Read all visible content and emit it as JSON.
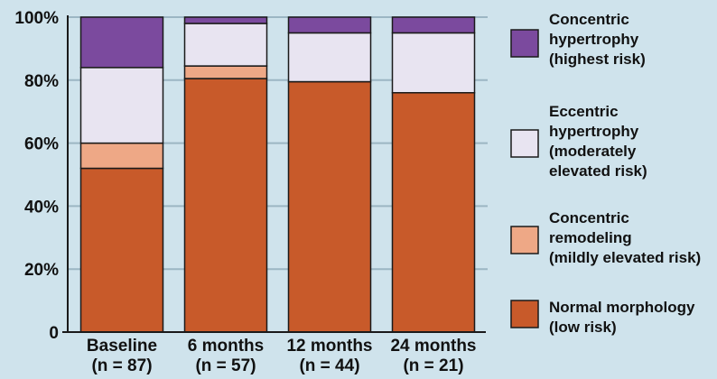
{
  "chart_data": {
    "type": "bar",
    "stacked": true,
    "y_tick_labels": [
      "0",
      "20%",
      "40%",
      "60%",
      "80%",
      "100%"
    ],
    "ylim": [
      0,
      100
    ],
    "categories": [
      [
        "Baseline",
        "(n = 87)"
      ],
      [
        "6 months",
        "(n = 57)"
      ],
      [
        "12 months",
        "(n = 44)"
      ],
      [
        "24 months",
        "(n = 21)"
      ]
    ],
    "series": [
      {
        "name": [
          "Normal morphology",
          "(low risk)"
        ],
        "color": "#c85a2a",
        "values": [
          52,
          80.5,
          79.5,
          76
        ]
      },
      {
        "name": [
          "Concentric",
          "remodeling",
          "(mildly elevated risk)"
        ],
        "color": "#eea886",
        "values": [
          8,
          4,
          0,
          0
        ]
      },
      {
        "name": [
          "Eccentric",
          "hypertrophy",
          "(moderately",
          "elevated risk)"
        ],
        "color": "#e8e4f1",
        "values": [
          24,
          13.5,
          15.5,
          19
        ]
      },
      {
        "name": [
          "Concentric",
          "hypertrophy",
          "(highest risk)"
        ],
        "color": "#7b4a9e",
        "values": [
          16,
          2,
          5,
          5
        ]
      }
    ],
    "legend_placement": "right",
    "grid": true,
    "background_color": "#cfe3ec",
    "grid_color": "#9cb6c3"
  }
}
